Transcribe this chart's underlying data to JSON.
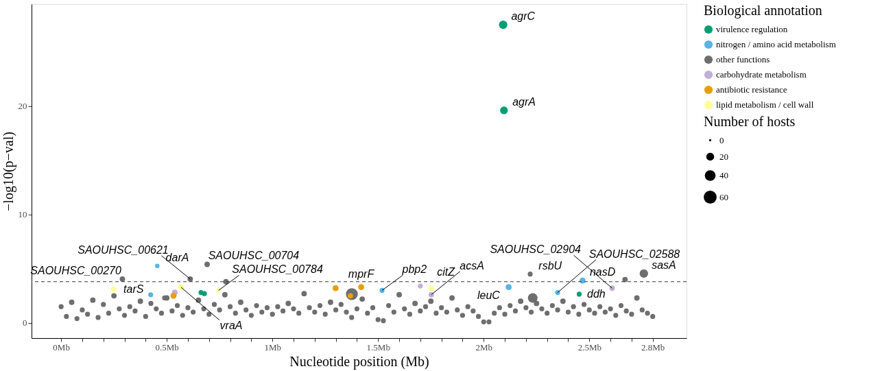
{
  "chart_data": {
    "type": "bubble",
    "xlabel": "Nucleotide position (Mb)",
    "ylabel": "−log10(p−val)",
    "legend": "right",
    "grid": false,
    "xlim": [
      -0.14,
      2.96
    ],
    "ylim": [
      -1.4,
      29.4
    ],
    "yticks": [
      0,
      10,
      20
    ],
    "xticks": [
      {
        "value": 0,
        "label": "0Mb"
      },
      {
        "value": 0.1,
        "label": null
      },
      {
        "value": 0.2,
        "label": null
      },
      {
        "value": 0.3,
        "label": null
      },
      {
        "value": 0.4,
        "label": null
      },
      {
        "value": 0.5,
        "label": "0.5Mb"
      },
      {
        "value": 0.6,
        "label": null
      },
      {
        "value": 0.7,
        "label": null
      },
      {
        "value": 0.8,
        "label": null
      },
      {
        "value": 0.9,
        "label": null
      },
      {
        "value": 1,
        "label": "1Mb"
      },
      {
        "value": 1.1,
        "label": null
      },
      {
        "value": 1.2,
        "label": null
      },
      {
        "value": 1.3,
        "label": null
      },
      {
        "value": 1.4,
        "label": null
      },
      {
        "value": 1.5,
        "label": "1.5Mb"
      },
      {
        "value": 1.6,
        "label": null
      },
      {
        "value": 1.7,
        "label": null
      },
      {
        "value": 1.8,
        "label": null
      },
      {
        "value": 1.9,
        "label": null
      },
      {
        "value": 2,
        "label": "2Mb"
      },
      {
        "value": 2.1,
        "label": null
      },
      {
        "value": 2.2,
        "label": null
      },
      {
        "value": 2.3,
        "label": null
      },
      {
        "value": 2.4,
        "label": null
      },
      {
        "value": 2.5,
        "label": "2.5Mb"
      },
      {
        "value": 2.6,
        "label": null
      },
      {
        "value": 2.7,
        "label": null
      },
      {
        "value": 2.8,
        "label": "2.8Mb"
      }
    ],
    "legend_title": "Biological annotation",
    "size_legend": [
      0,
      20,
      40,
      60
    ],
    "ref_lines": [
      {
        "axis": "y",
        "value": 3.8,
        "line_style": "dashed",
        "color": "#333333"
      }
    ],
    "series": [
      {
        "name": "virulence regulation",
        "color": "#009e73",
        "x": [
          2.092,
          2.096,
          0.662,
          0.678,
          2.452
        ],
        "values": [
          27.5,
          19.6,
          2.8,
          2.7,
          2.65
        ],
        "sizes": [
          30,
          25,
          10,
          10,
          10
        ]
      },
      {
        "name": "nitrogen / amino acid metabolism",
        "color": "#56b4e9",
        "x": [
          0.455,
          0.424,
          1.519,
          2.118,
          2.35,
          2.468
        ],
        "values": [
          5.25,
          2.6,
          3.0,
          3.3,
          2.8,
          3.9
        ],
        "sizes": [
          8,
          10,
          10,
          15,
          10,
          15
        ]
      },
      {
        "name": "other functions",
        "color": "#6e6e6e",
        "x": [
          0.29,
          0.611,
          0.691,
          1.376,
          2.22,
          2.758,
          2.669,
          2.232,
          0.49,
          0.78,
          0,
          0.025,
          0.05,
          0.075,
          0.1,
          0.125,
          0.15,
          0.175,
          0.2,
          0.225,
          0.25,
          0.275,
          0.3,
          0.325,
          0.35,
          0.375,
          0.4,
          0.425,
          0.45,
          0.475,
          0.5,
          0.525,
          0.55,
          0.575,
          0.6,
          0.625,
          0.65,
          0.675,
          0.7,
          0.725,
          0.75,
          0.775,
          0.8,
          0.825,
          0.85,
          0.875,
          0.9,
          0.925,
          0.95,
          0.975,
          1.0,
          1.025,
          1.05,
          1.075,
          1.1,
          1.125,
          1.15,
          1.175,
          1.2,
          1.225,
          1.25,
          1.275,
          1.3,
          1.325,
          1.35,
          1.375,
          1.4,
          1.425,
          1.45,
          1.475,
          1.5,
          1.525,
          1.55,
          1.575,
          1.6,
          1.625,
          1.65,
          1.675,
          1.7,
          1.725,
          1.75,
          1.775,
          1.8,
          1.825,
          1.85,
          1.875,
          1.9,
          1.925,
          1.95,
          1.975,
          2.0,
          2.025,
          2.05,
          2.075,
          2.1,
          2.125,
          2.15,
          2.175,
          2.2,
          2.225,
          2.25,
          2.275,
          2.3,
          2.325,
          2.35,
          2.375,
          2.4,
          2.425,
          2.45,
          2.475,
          2.5,
          2.525,
          2.55,
          2.575,
          2.6,
          2.625,
          2.65,
          2.675,
          2.7,
          2.725,
          2.75,
          2.775,
          2.8
        ],
        "values": [
          4.05,
          4.05,
          5.4,
          2.65,
          4.5,
          4.55,
          4.0,
          2.3,
          2.3,
          3.8,
          1.5,
          0.6,
          1.9,
          0.4,
          1.2,
          0.8,
          2.1,
          0.5,
          1.7,
          0.9,
          2.5,
          1.3,
          0.7,
          1.5,
          1.1,
          2.0,
          0.6,
          1.8,
          1.3,
          0.9,
          2.3,
          1.1,
          1.6,
          0.7,
          1.4,
          1.0,
          2.1,
          1.3,
          0.8,
          1.7,
          1.2,
          2.6,
          1.5,
          0.9,
          1.9,
          1.2,
          0.7,
          1.6,
          1.0,
          1.4,
          0.8,
          1.5,
          1.1,
          1.8,
          1.3,
          0.9,
          2.7,
          1.4,
          1.0,
          1.6,
          0.8,
          1.9,
          1.2,
          1.7,
          1.0,
          0.5,
          1.3,
          2.2,
          0.9,
          1.4,
          0.3,
          0.2,
          1.6,
          1.0,
          2.6,
          1.3,
          0.8,
          1.8,
          1.1,
          1.5,
          2.0,
          0.9,
          1.4,
          1.0,
          2.3,
          1.2,
          0.7,
          1.5,
          1.1,
          0.6,
          0.1,
          0.1,
          0.9,
          1.4,
          0.8,
          1.6,
          1.1,
          2.0,
          1.4,
          1.0,
          1.8,
          1.3,
          0.9,
          1.6,
          1.2,
          2.0,
          1.0,
          1.5,
          0.8,
          1.7,
          1.2,
          0.9,
          1.5,
          1.0,
          1.3,
          0.7,
          1.6,
          1.1,
          0.8,
          2.3,
          1.2,
          0.9,
          0.6
        ],
        "sizes": [
          12,
          12,
          12,
          60,
          10,
          30,
          12,
          40,
          10,
          12,
          10,
          10,
          12,
          10,
          10,
          10,
          12,
          10,
          10,
          10,
          12,
          10,
          10,
          10,
          10,
          12,
          10,
          10,
          10,
          10,
          12,
          10,
          10,
          10,
          10,
          10,
          12,
          10,
          10,
          10,
          10,
          12,
          10,
          10,
          12,
          10,
          10,
          10,
          10,
          10,
          10,
          10,
          10,
          12,
          10,
          10,
          12,
          10,
          10,
          10,
          10,
          12,
          10,
          10,
          10,
          10,
          10,
          12,
          10,
          10,
          10,
          10,
          10,
          10,
          12,
          10,
          10,
          12,
          10,
          10,
          12,
          10,
          10,
          10,
          12,
          10,
          10,
          10,
          10,
          10,
          10,
          10,
          10,
          10,
          10,
          10,
          10,
          12,
          10,
          10,
          12,
          10,
          10,
          10,
          10,
          12,
          10,
          10,
          10,
          10,
          10,
          10,
          10,
          10,
          10,
          10,
          10,
          10,
          10,
          12,
          10,
          10,
          10
        ]
      },
      {
        "name": "carbohydrate metabolism",
        "color": "#c2aed6",
        "x": [
          0.538,
          1.7,
          1.752,
          2.608
        ],
        "values": [
          2.8,
          3.4,
          2.6,
          3.2
        ],
        "sizes": [
          15,
          10,
          12,
          12
        ]
      },
      {
        "name": "antibiotic resistance",
        "color": "#e69f00",
        "x": [
          0.532,
          1.299,
          1.369,
          1.42
        ],
        "values": [
          2.5,
          3.2,
          2.5,
          3.3
        ],
        "sizes": [
          15,
          15,
          12,
          15
        ]
      },
      {
        "name": "lipid metabolism / cell wall",
        "color": "#ffff99",
        "x": [
          0.248,
          0.567,
          0.745,
          1.752
        ],
        "values": [
          3.1,
          3.3,
          3.0,
          3.2
        ],
        "sizes": [
          15,
          15,
          8,
          12
        ]
      }
    ],
    "annotations": [
      "Number of hosts",
      {
        "text": "agrC",
        "x": 2.092,
        "y": 27.5
      },
      {
        "text": "agrA",
        "x": 2.096,
        "y": 19.6
      },
      {
        "text": "darA",
        "x": 0.455,
        "y": 5.25
      },
      {
        "text": "SAOUHSC_00704",
        "x": 0.691,
        "y": 5.4
      },
      {
        "text": "SAOUHSC_00270",
        "x": 0.29,
        "y": 4.05
      },
      {
        "text": "SAOUHSC_00621",
        "x": 0.611,
        "y": 4.05
      },
      {
        "text": "tarS",
        "x": 0.248,
        "y": 3.1
      },
      {
        "text": "vraA",
        "x": 0.567,
        "y": 3.3
      },
      {
        "text": "SAOUHSC_00784",
        "x": 0.745,
        "y": 3.0
      },
      {
        "text": "mprF",
        "x": 1.299,
        "y": 3.2
      },
      {
        "text": "pbp2",
        "x": 1.519,
        "y": 3.0
      },
      {
        "text": "citZ",
        "x": 1.7,
        "y": 3.4
      },
      {
        "text": "acsA",
        "x": 1.752,
        "y": 2.6
      },
      {
        "text": "leuC",
        "x": 2.118,
        "y": 3.3
      },
      {
        "text": "rsbU",
        "x": 2.22,
        "y": 4.5
      },
      {
        "text": "nasD",
        "x": 2.468,
        "y": 3.9
      },
      {
        "text": "sasA",
        "x": 2.758,
        "y": 4.55
      },
      {
        "text": "SAOUHSC_02588",
        "x": 2.35,
        "y": 2.8
      },
      {
        "text": "SAOUHSC_02904",
        "x": 2.608,
        "y": 3.2
      },
      {
        "text": "ddh",
        "x": 2.452,
        "y": 2.65
      }
    ]
  }
}
